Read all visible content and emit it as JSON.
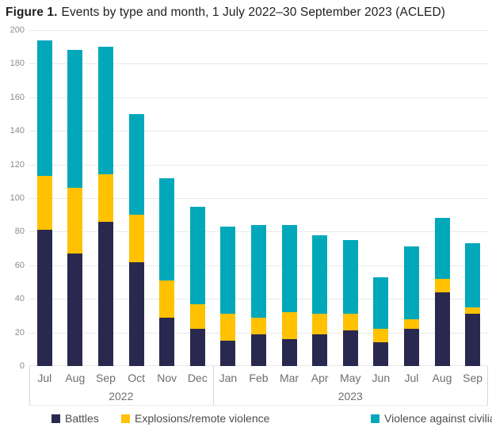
{
  "figure": {
    "title_bold": "Figure 1.",
    "title_text": "Events by type and month, 1 July 2022–30 September 2023 (ACLED)"
  },
  "chart_data": {
    "type": "bar",
    "stacked": true,
    "title": "Figure 1. Events by type and month, 1 July 2022–30 September 2023 (ACLED)",
    "source": "ACLED",
    "categories": [
      "Jul",
      "Aug",
      "Sep",
      "Oct",
      "Nov",
      "Dec",
      "Jan",
      "Feb",
      "Mar",
      "Apr",
      "May",
      "Jun",
      "Jul",
      "Aug",
      "Sep"
    ],
    "year_groups": [
      {
        "label": "2022",
        "count": 6
      },
      {
        "label": "2023",
        "count": 9
      }
    ],
    "series": [
      {
        "name": "Battles",
        "color": "#29294F",
        "values": [
          81,
          67,
          86,
          62,
          29,
          22,
          15,
          19,
          16,
          19,
          21,
          14,
          22,
          44,
          31
        ]
      },
      {
        "name": "Explosions/remote violence",
        "color": "#FFC100",
        "values": [
          32,
          39,
          28,
          28,
          22,
          15,
          16,
          10,
          16,
          12,
          10,
          8,
          6,
          8,
          4
        ]
      },
      {
        "name": "Violence against civilians",
        "color": "#00A8BA",
        "values": [
          81,
          82,
          76,
          60,
          61,
          58,
          52,
          55,
          52,
          47,
          44,
          31,
          43,
          36,
          38
        ]
      }
    ],
    "totals": [
      194,
      188,
      190,
      150,
      112,
      95,
      83,
      84,
      84,
      78,
      75,
      53,
      71,
      88,
      73
    ],
    "ylim": [
      0,
      200
    ],
    "ytick_interval": 20,
    "yticks": [
      "0",
      "20",
      "40",
      "60",
      "80",
      "100",
      "120",
      "140",
      "160",
      "180",
      "200"
    ],
    "grid": true,
    "legend_position": "bottom"
  },
  "colors": {
    "background": "#FFFFFF",
    "grid": "#E9E9E9",
    "axis_border": "#D9D9D9",
    "tick_label": "#8C8C8C",
    "month_label": "#6E6E6E",
    "legend_text": "#4D4D4D",
    "title": "#1F1F1F"
  }
}
